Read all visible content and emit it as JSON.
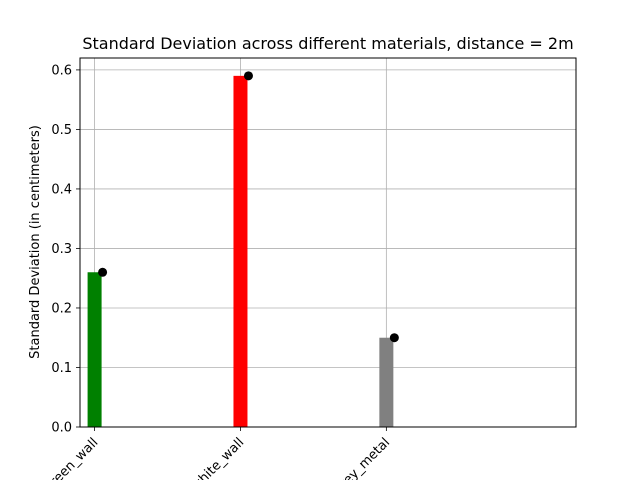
{
  "chart_data": {
    "type": "bar",
    "title": "Standard Deviation across different materials, distance = 2m",
    "xlabel": "",
    "ylabel": "Standard Deviation (in centimeters)",
    "categories": [
      "green_wall",
      "white_wall",
      "grey_metal"
    ],
    "values": [
      0.26,
      0.59,
      0.15
    ],
    "bar_colors": [
      "#008000",
      "#ff0000",
      "#808080"
    ],
    "marker_color": "#000000",
    "ylim": [
      0,
      0.62
    ],
    "yticks": [
      "0.0",
      "0.1",
      "0.2",
      "0.3",
      "0.4",
      "0.5",
      "0.6"
    ],
    "grid": true,
    "legend": "none"
  }
}
